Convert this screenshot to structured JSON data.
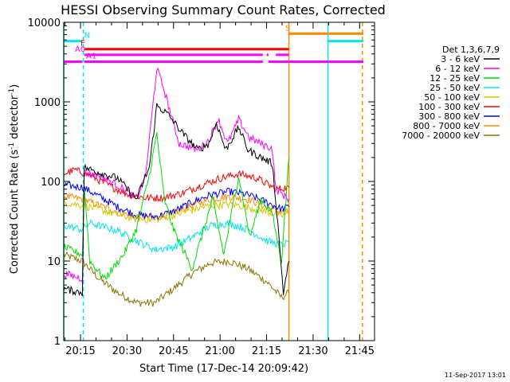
{
  "chart_data": {
    "type": "line",
    "title": "HESSI Observing Summary Count Rates, Corrected",
    "xlabel": "Start Time (17-Dec-14 20:09:42)",
    "ylabel": "Corrected Count Rate (s",
    "ylabel_sup": "-1",
    "ylabel_mid": " detector",
    "ylabel_end": ")",
    "yscale": "log",
    "ylim": [
      1,
      10000
    ],
    "xlim_minutes": [
      20.16,
      21.83
    ],
    "x_tick_labels": [
      "20:15",
      "20:30",
      "20:45",
      "21:00",
      "21:15",
      "21:30",
      "21:45"
    ],
    "x_tick_values": [
      20.25,
      20.5,
      20.75,
      21.0,
      21.25,
      21.5,
      21.75
    ],
    "y_tick_labels": [
      "1",
      "10",
      "100",
      "1000",
      "10000"
    ],
    "y_tick_values": [
      1,
      10,
      100,
      1000,
      10000
    ],
    "legend_title": "Det 1,3,6,7,9",
    "legend_position": "right",
    "footer_date": "11-Sep-2017 13:01",
    "series": [
      {
        "name": "3 - 6 keV",
        "color": "#000000",
        "points": [
          [
            20.16,
            4.5
          ],
          [
            20.26,
            4
          ],
          [
            20.27,
            150
          ],
          [
            20.35,
            130
          ],
          [
            20.45,
            110
          ],
          [
            20.55,
            60
          ],
          [
            20.62,
            150
          ],
          [
            20.66,
            900
          ],
          [
            20.72,
            700
          ],
          [
            20.8,
            400
          ],
          [
            20.88,
            250
          ],
          [
            20.94,
            300
          ],
          [
            20.98,
            550
          ],
          [
            21.03,
            250
          ],
          [
            21.1,
            480
          ],
          [
            21.15,
            250
          ],
          [
            21.22,
            200
          ],
          [
            21.28,
            170
          ],
          [
            21.31,
            30
          ],
          [
            21.34,
            4
          ],
          [
            21.37,
            10
          ]
        ]
      },
      {
        "name": "6 - 12 keV",
        "color": "#ff00ff",
        "points": [
          [
            20.16,
            7
          ],
          [
            20.26,
            6
          ],
          [
            20.27,
            130
          ],
          [
            20.35,
            120
          ],
          [
            20.45,
            90
          ],
          [
            20.55,
            60
          ],
          [
            20.6,
            120
          ],
          [
            20.66,
            2700
          ],
          [
            20.7,
            1400
          ],
          [
            20.78,
            300
          ],
          [
            20.88,
            250
          ],
          [
            20.94,
            330
          ],
          [
            20.99,
            620
          ],
          [
            21.04,
            300
          ],
          [
            21.1,
            600
          ],
          [
            21.16,
            350
          ],
          [
            21.22,
            300
          ],
          [
            21.28,
            260
          ],
          [
            21.3,
            80
          ],
          [
            21.37,
            60
          ]
        ]
      },
      {
        "name": "12 - 25 keV",
        "color": "#00dd00",
        "points": [
          [
            20.16,
            15
          ],
          [
            20.26,
            12
          ],
          [
            20.27,
            90
          ],
          [
            20.3,
            10
          ],
          [
            20.38,
            6
          ],
          [
            20.48,
            12
          ],
          [
            20.55,
            25
          ],
          [
            20.62,
            120
          ],
          [
            20.66,
            400
          ],
          [
            20.7,
            60
          ],
          [
            20.75,
            25
          ],
          [
            20.85,
            8
          ],
          [
            20.9,
            20
          ],
          [
            20.96,
            60
          ],
          [
            21.02,
            12
          ],
          [
            21.1,
            120
          ],
          [
            21.16,
            20
          ],
          [
            21.22,
            60
          ],
          [
            21.28,
            40
          ],
          [
            21.33,
            10
          ],
          [
            21.37,
            200
          ]
        ]
      },
      {
        "name": "25 - 50 keV",
        "color": "#00e5ee",
        "points": [
          [
            20.16,
            28
          ],
          [
            20.26,
            25
          ],
          [
            20.3,
            30
          ],
          [
            20.45,
            24
          ],
          [
            20.55,
            18
          ],
          [
            20.65,
            14
          ],
          [
            20.75,
            15
          ],
          [
            20.85,
            20
          ],
          [
            20.95,
            28
          ],
          [
            21.05,
            30
          ],
          [
            21.15,
            25
          ],
          [
            21.25,
            18
          ],
          [
            21.33,
            16
          ],
          [
            21.37,
            17
          ]
        ]
      },
      {
        "name": "50 - 100 keV",
        "color": "#d4c800",
        "points": [
          [
            20.16,
            55
          ],
          [
            20.26,
            50
          ],
          [
            20.35,
            45
          ],
          [
            20.45,
            38
          ],
          [
            20.55,
            34
          ],
          [
            20.65,
            33
          ],
          [
            20.75,
            38
          ],
          [
            20.85,
            44
          ],
          [
            20.95,
            50
          ],
          [
            21.05,
            52
          ],
          [
            21.15,
            48
          ],
          [
            21.25,
            42
          ],
          [
            21.33,
            37
          ],
          [
            21.37,
            40
          ]
        ]
      },
      {
        "name": "100 - 300 keV",
        "color": "#ff0000",
        "points": [
          [
            20.16,
            125
          ],
          [
            20.22,
            140
          ],
          [
            20.3,
            120
          ],
          [
            20.4,
            90
          ],
          [
            20.5,
            70
          ],
          [
            20.6,
            62
          ],
          [
            20.7,
            63
          ],
          [
            20.8,
            72
          ],
          [
            20.9,
            90
          ],
          [
            21.0,
            110
          ],
          [
            21.1,
            125
          ],
          [
            21.2,
            110
          ],
          [
            21.3,
            80
          ],
          [
            21.37,
            85
          ]
        ]
      },
      {
        "name": "300 - 800 keV",
        "color": "#0000ff",
        "points": [
          [
            20.16,
            90
          ],
          [
            20.26,
            85
          ],
          [
            20.35,
            65
          ],
          [
            20.45,
            48
          ],
          [
            20.55,
            38
          ],
          [
            20.65,
            36
          ],
          [
            20.75,
            42
          ],
          [
            20.85,
            55
          ],
          [
            20.95,
            68
          ],
          [
            21.05,
            75
          ],
          [
            21.15,
            68
          ],
          [
            21.25,
            55
          ],
          [
            21.33,
            45
          ],
          [
            21.37,
            48
          ]
        ]
      },
      {
        "name": "800 - 7000 keV",
        "color": "#ff8c00",
        "points": [
          [
            20.16,
            65
          ],
          [
            20.26,
            60
          ],
          [
            20.35,
            50
          ],
          [
            20.45,
            42
          ],
          [
            20.55,
            36
          ],
          [
            20.65,
            35
          ],
          [
            20.75,
            40
          ],
          [
            20.85,
            50
          ],
          [
            20.95,
            60
          ],
          [
            21.05,
            65
          ],
          [
            21.15,
            60
          ],
          [
            21.25,
            48
          ],
          [
            21.33,
            40
          ],
          [
            21.37,
            42
          ]
        ]
      },
      {
        "name": "7000 - 20000 keV",
        "color": "#8b7500",
        "points": [
          [
            20.16,
            12
          ],
          [
            20.26,
            10
          ],
          [
            20.35,
            6
          ],
          [
            20.45,
            4
          ],
          [
            20.55,
            3
          ],
          [
            20.65,
            3
          ],
          [
            20.75,
            4.5
          ],
          [
            20.85,
            7
          ],
          [
            20.95,
            9.5
          ],
          [
            21.05,
            10
          ],
          [
            21.15,
            8
          ],
          [
            21.25,
            5.5
          ],
          [
            21.33,
            3.5
          ],
          [
            21.37,
            4
          ]
        ]
      }
    ],
    "flag_bars": [
      {
        "label": "N",
        "color": "#00e5ee",
        "y": 5800,
        "segments": [
          [
            20.16,
            20.26
          ],
          [
            21.58,
            21.77
          ]
        ],
        "label_x": 20.27
      },
      {
        "label": "S",
        "color": "#ff8c00",
        "y": 7200,
        "segments": [
          [
            21.37,
            21.77
          ]
        ],
        "label_x": 21.35
      },
      {
        "label": "F",
        "color": "#ff0000",
        "y": 4600,
        "segments": [
          [
            20.27,
            21.37
          ]
        ],
        "label_x": 20.25
      },
      {
        "label": "A0",
        "color": "#ff00ff",
        "y": 3900,
        "segments": [
          [
            20.27,
            21.23
          ],
          [
            21.25,
            21.26
          ],
          [
            21.3,
            21.37
          ]
        ],
        "label_x": 20.22
      },
      {
        "label": "A1",
        "color": "#ff00ff",
        "y": 3200,
        "segments": [
          [
            20.16,
            20.26
          ],
          [
            20.27,
            21.23
          ],
          [
            21.26,
            21.77
          ]
        ],
        "label_x": 20.28
      }
    ],
    "vertical_lines": [
      {
        "x": 20.16,
        "color": "#00e5ee",
        "dash": false
      },
      {
        "x": 20.265,
        "color": "#00e5ee",
        "dash": true
      },
      {
        "x": 21.37,
        "color": "#ff8c00",
        "dash": false
      },
      {
        "x": 21.58,
        "color": "#00e5ee",
        "dash": false
      },
      {
        "x": 21.765,
        "color": "#ff8c00",
        "dash": true
      }
    ]
  }
}
